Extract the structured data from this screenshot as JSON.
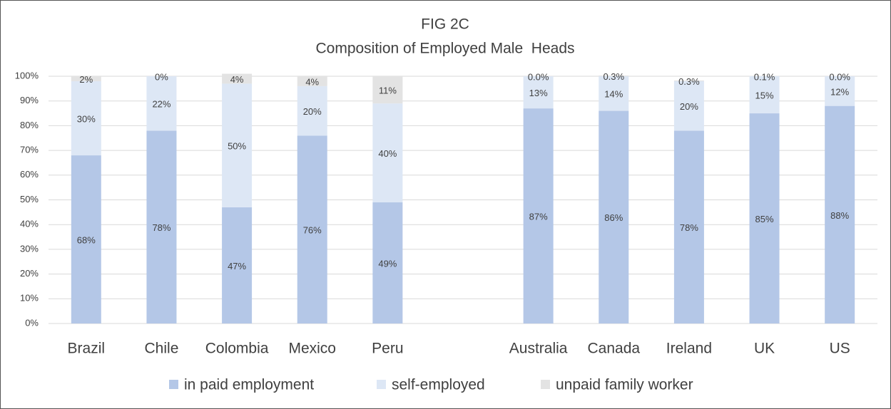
{
  "chart_data": {
    "type": "stacked_bar",
    "title": "FIG 2C",
    "subtitle": "Composition of Employed Male  Heads",
    "categories": [
      "Brazil",
      "Chile",
      "Colombia",
      "Mexico",
      "Peru",
      null,
      "Australia",
      "Canada",
      "Ireland",
      "UK",
      "US"
    ],
    "series": [
      {
        "name": "in paid employment",
        "color": "#b4c7e7",
        "values": [
          68,
          78,
          47,
          76,
          49,
          null,
          87,
          86,
          78,
          85,
          88
        ],
        "value_labels": [
          "68%",
          "78%",
          "47%",
          "76%",
          "49%",
          null,
          "87%",
          "86%",
          "78%",
          "85%",
          "88%"
        ]
      },
      {
        "name": "self-employed",
        "color": "#dde7f5",
        "values": [
          30,
          22,
          50,
          20,
          40,
          null,
          13,
          14,
          20,
          15,
          12
        ],
        "value_labels": [
          "30%",
          "22%",
          "50%",
          "20%",
          "40%",
          null,
          "13%",
          "14%",
          "20%",
          "15%",
          "12%"
        ]
      },
      {
        "name": "unpaid family worker",
        "color": "#e3e3e3",
        "values": [
          2,
          0,
          4,
          4,
          11,
          null,
          0.0,
          0.3,
          0.3,
          0.1,
          0.0
        ],
        "value_labels": [
          "2%",
          "0%",
          "4%",
          "4%",
          "11%",
          null,
          "0.0%",
          "0.3%",
          "0.3%",
          "0.1%",
          "0.0%"
        ]
      }
    ],
    "ylim": [
      0,
      100
    ],
    "yticks": [
      {
        "value": 0,
        "label": "0%"
      },
      {
        "value": 10,
        "label": "10%"
      },
      {
        "value": 20,
        "label": "20%"
      },
      {
        "value": 30,
        "label": "30%"
      },
      {
        "value": 40,
        "label": "40%"
      },
      {
        "value": 50,
        "label": "50%"
      },
      {
        "value": 60,
        "label": "60%"
      },
      {
        "value": 70,
        "label": "70%"
      },
      {
        "value": 80,
        "label": "80%"
      },
      {
        "value": 90,
        "label": "90%"
      },
      {
        "value": 100,
        "label": "100%"
      }
    ],
    "grid": true,
    "legend": "bottom"
  }
}
